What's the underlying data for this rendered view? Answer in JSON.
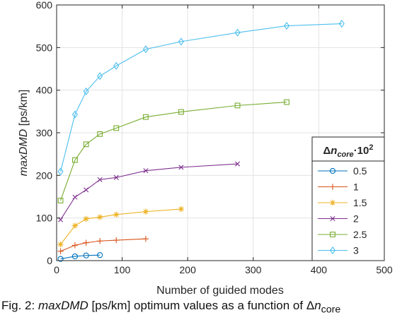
{
  "chart_data": {
    "type": "line",
    "xlabel": "Number of guided modes",
    "ylabel": "maxDMD [ps/km]",
    "xlim": [
      0,
      500
    ],
    "ylim": [
      0,
      600
    ],
    "xticks": [
      0,
      100,
      200,
      300,
      400,
      500
    ],
    "yticks": [
      0,
      100,
      200,
      300,
      400,
      500,
      600
    ],
    "grid": true,
    "legend_position": "bottom-right",
    "legend_title": "Δn core ·10 2",
    "legend_title_parts": {
      "delta": "Δ",
      "n": "n",
      "sub": "core",
      "dot": "·10",
      "sup": "2"
    },
    "series": [
      {
        "name": "0.5",
        "color": "#0072bd",
        "marker": "circle",
        "x": [
          6,
          28,
          45,
          66
        ],
        "y": [
          4,
          10,
          12,
          13
        ]
      },
      {
        "name": "1",
        "color": "#d95319",
        "marker": "plus",
        "x": [
          6,
          28,
          45,
          66,
          91,
          136
        ],
        "y": [
          22,
          36,
          42,
          46,
          48,
          51
        ]
      },
      {
        "name": "1.5",
        "color": "#edb120",
        "marker": "star",
        "x": [
          6,
          28,
          45,
          66,
          91,
          136,
          190
        ],
        "y": [
          38,
          82,
          98,
          102,
          108,
          115,
          121
        ]
      },
      {
        "name": "2",
        "color": "#7e2f8e",
        "marker": "x",
        "x": [
          6,
          28,
          45,
          66,
          91,
          136,
          190,
          276
        ],
        "y": [
          96,
          149,
          166,
          190,
          195,
          211,
          219,
          227
        ]
      },
      {
        "name": "2.5",
        "color": "#77ac30",
        "marker": "square",
        "x": [
          6,
          28,
          45,
          66,
          91,
          136,
          190,
          276,
          351
        ],
        "y": [
          141,
          236,
          273,
          297,
          311,
          337,
          349,
          364,
          372
        ]
      },
      {
        "name": "3",
        "color": "#4dbeee",
        "marker": "diamond",
        "x": [
          6,
          28,
          45,
          66,
          91,
          136,
          190,
          276,
          351,
          435
        ],
        "y": [
          209,
          343,
          397,
          433,
          457,
          496,
          514,
          535,
          551,
          556
        ]
      }
    ]
  },
  "caption": {
    "prefix": "Fig. 2: ",
    "italic": "maxDMD",
    "rest": " [ps/km] optimum values as a function of Δ",
    "tail": "n",
    "tail_sub": "core"
  }
}
